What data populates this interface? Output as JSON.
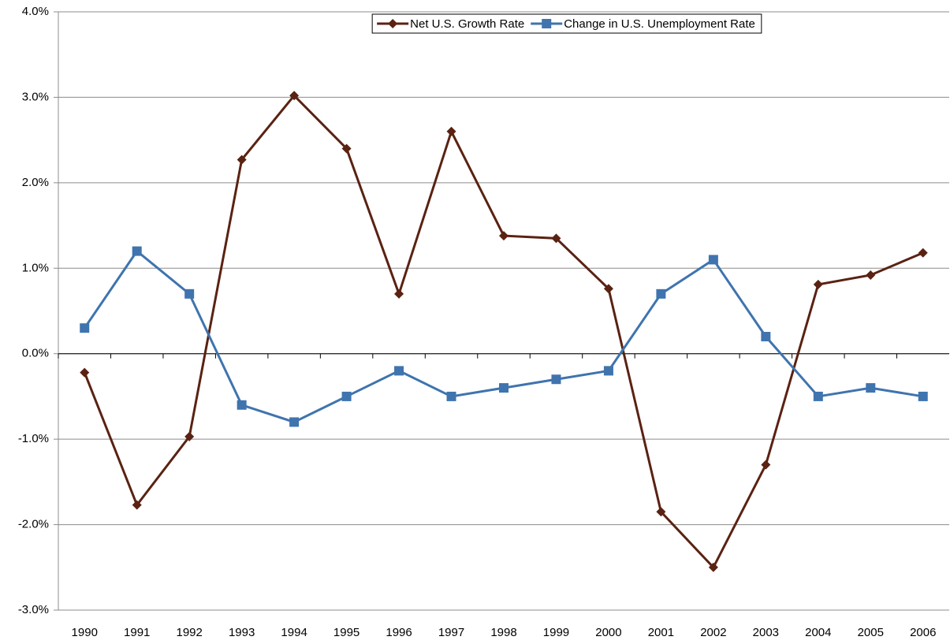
{
  "chart_data": {
    "type": "line",
    "categories": [
      "1990",
      "1991",
      "1992",
      "1993",
      "1994",
      "1995",
      "1996",
      "1997",
      "1998",
      "1999",
      "2000",
      "2001",
      "2002",
      "2003",
      "2004",
      "2005",
      "2006"
    ],
    "series": [
      {
        "name": "Net U.S. Growth Rate",
        "color": "#5a2212",
        "marker": "diamond",
        "values": [
          -0.22,
          -1.77,
          -0.97,
          2.27,
          3.02,
          2.4,
          0.7,
          2.6,
          1.38,
          1.35,
          0.76,
          -1.85,
          -2.5,
          -1.3,
          0.81,
          0.92,
          1.18
        ]
      },
      {
        "name": "Change in U.S. Unemployment Rate",
        "color": "#3f74ae",
        "marker": "square",
        "values": [
          0.3,
          1.2,
          0.7,
          -0.6,
          -0.8,
          -0.5,
          -0.2,
          -0.5,
          -0.4,
          -0.3,
          -0.2,
          0.7,
          1.1,
          0.2,
          -0.5,
          -0.4,
          -0.5
        ]
      }
    ],
    "ylim": [
      -3,
      4
    ],
    "yticks": [
      {
        "value": -3,
        "label": "-3.0%"
      },
      {
        "value": -2,
        "label": "-2.0%"
      },
      {
        "value": -1,
        "label": "-1.0%"
      },
      {
        "value": 0,
        "label": "0.0%"
      },
      {
        "value": 1,
        "label": "1.0%"
      },
      {
        "value": 2,
        "label": "2.0%"
      },
      {
        "value": 3,
        "label": "3.0%"
      },
      {
        "value": 4,
        "label": "4.0%"
      }
    ],
    "grid": true,
    "legend": "top"
  }
}
